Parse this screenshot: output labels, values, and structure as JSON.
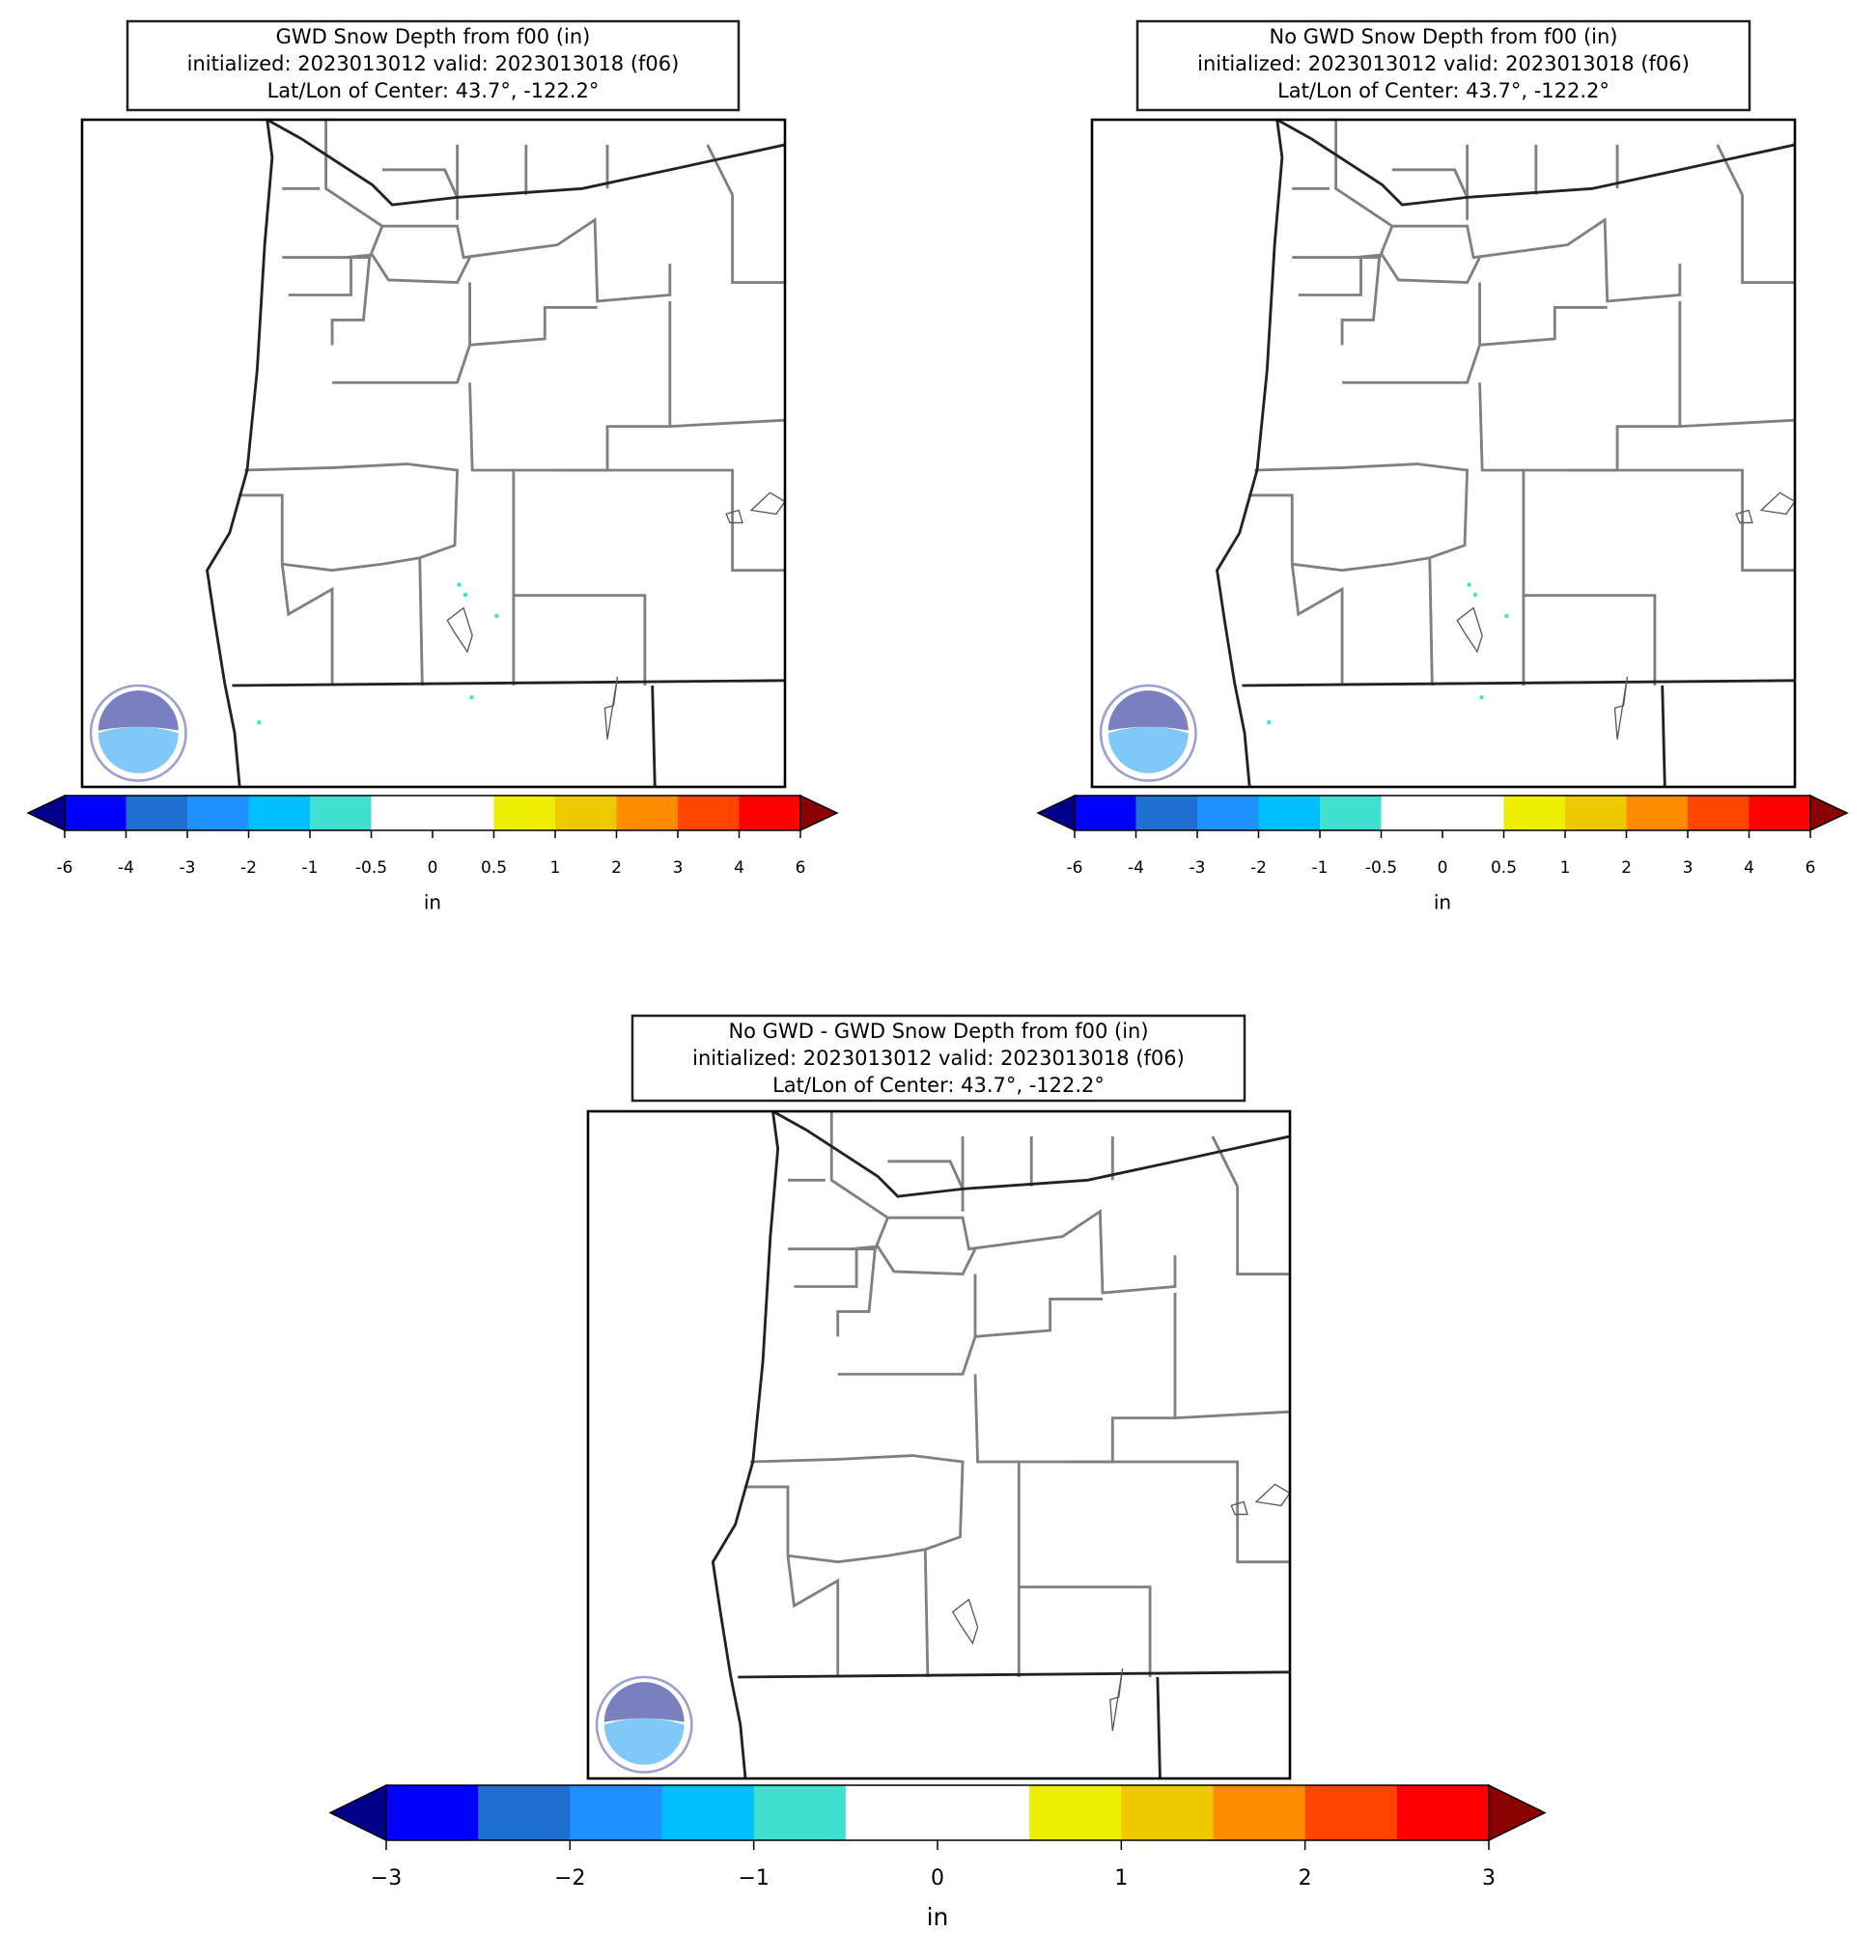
{
  "panels": [
    {
      "title_lines": [
        "GWD Snow Depth from f00 (in)",
        "initialized: 2023013012 valid: 2023013018 (f06)",
        "Lat/Lon of Center: 43.7°, -122.2°"
      ],
      "colorbar": {
        "boundaries": [
          -6,
          -4,
          -3,
          -2,
          -1,
          -0.5,
          0,
          0.5,
          1,
          2,
          3,
          4,
          6
        ],
        "ticks": [
          -6,
          -4,
          -3,
          -2,
          -1,
          -0.5,
          0,
          0.5,
          1,
          2,
          3,
          4,
          6
        ],
        "colors": [
          "#0000ff",
          "#1e6fcf",
          "#1e90ff",
          "#00bfff",
          "#40e0d0",
          "#ffffff",
          "#ffffff",
          "#eeee00",
          "#eec900",
          "#ff8c00",
          "#ff4500",
          "#ff0000"
        ],
        "extend_colors": [
          "#00008b",
          "#8b0000"
        ],
        "label": "in"
      }
    },
    {
      "title_lines": [
        "No GWD Snow Depth from f00 (in)",
        "initialized: 2023013012 valid: 2023013018 (f06)",
        "Lat/Lon of Center: 43.7°, -122.2°"
      ],
      "colorbar": {
        "boundaries": [
          -6,
          -4,
          -3,
          -2,
          -1,
          -0.5,
          0,
          0.5,
          1,
          2,
          3,
          4,
          6
        ],
        "ticks": [
          -6,
          -4,
          -3,
          -2,
          -1,
          -0.5,
          0,
          0.5,
          1,
          2,
          3,
          4,
          6
        ],
        "colors": [
          "#0000ff",
          "#1e6fcf",
          "#1e90ff",
          "#00bfff",
          "#40e0d0",
          "#ffffff",
          "#ffffff",
          "#eeee00",
          "#eec900",
          "#ff8c00",
          "#ff4500",
          "#ff0000"
        ],
        "extend_colors": [
          "#00008b",
          "#8b0000"
        ],
        "label": "in"
      }
    },
    {
      "title_lines": [
        "No GWD - GWD Snow Depth from f00 (in)",
        "initialized: 2023013012 valid: 2023013018 (f06)",
        "Lat/Lon of Center: 43.7°, -122.2°"
      ],
      "colorbar": {
        "boundaries": [
          -3,
          -2.5,
          -2,
          -1.5,
          -1,
          -0.5,
          0,
          0.5,
          1,
          1.5,
          2,
          2.5,
          3
        ],
        "ticks": [
          {
            "value": -3,
            "label": "−3"
          },
          {
            "value": -2,
            "label": "−2"
          },
          {
            "value": -1,
            "label": "−1"
          },
          0,
          1,
          2,
          3
        ],
        "colors": [
          "#0000ff",
          "#1e6fcf",
          "#1e90ff",
          "#00bfff",
          "#40e0d0",
          "#ffffff",
          "#ffffff",
          "#eeee00",
          "#eec900",
          "#ff8c00",
          "#ff4500",
          "#ff0000"
        ],
        "extend_colors": [
          "#00008b",
          "#8b0000"
        ],
        "label": "in"
      }
    }
  ]
}
